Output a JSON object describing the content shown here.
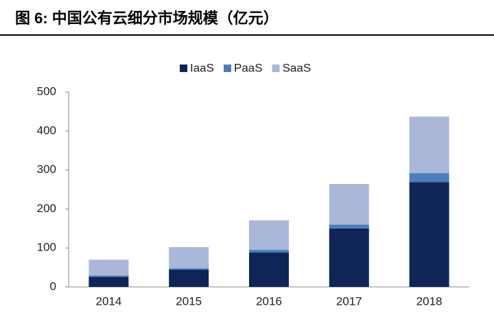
{
  "chart_data": {
    "type": "stacked_bar",
    "title": "图 6:  中国公有云细分市场规模（亿元）",
    "categories": [
      "2014",
      "2015",
      "2016",
      "2017",
      "2018"
    ],
    "series": [
      {
        "name": "IaaS",
        "color": "#0f2557",
        "values": [
          26,
          44,
          88,
          150,
          269
        ]
      },
      {
        "name": "PaaS",
        "color": "#4a7ebb",
        "values": [
          3,
          4,
          7,
          10,
          23
        ]
      },
      {
        "name": "SaaS",
        "color": "#a9b8d9",
        "values": [
          41,
          54,
          76,
          104,
          145
        ]
      }
    ],
    "ylim": [
      0,
      500
    ],
    "yticks": [
      0,
      100,
      200,
      300,
      400,
      500
    ],
    "grid": false,
    "legend": "top"
  }
}
